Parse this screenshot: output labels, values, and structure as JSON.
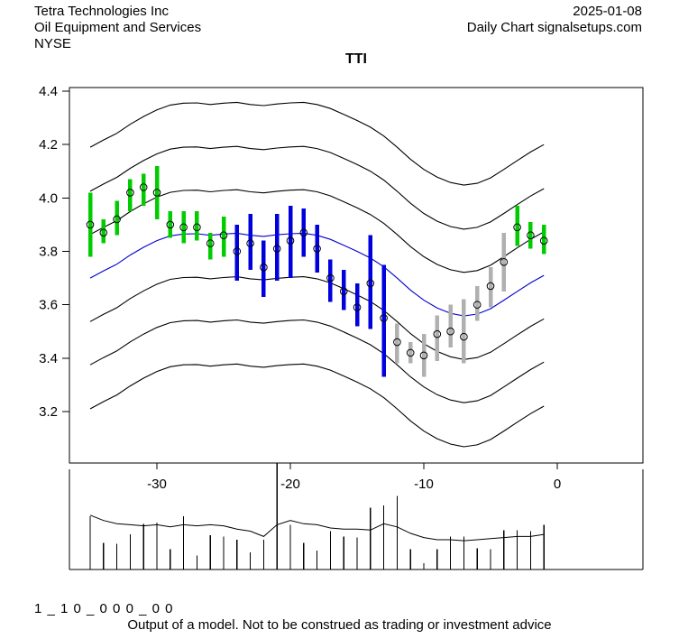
{
  "header": {
    "company": "Tetra Technologies Inc",
    "industry": "Oil Equipment and Services",
    "exchange": "NYSE",
    "date": "2025-01-08",
    "chart_type": "Daily Chart signalsetups.com"
  },
  "title": "TTI",
  "footer": {
    "model_code": "1 _ 1 0 _ 0 0 0 _ 0 0",
    "disclaimer": "Output of a model. Not to be construed as trading or investment advice"
  },
  "chart_data": {
    "type": "line",
    "subtype": "daily-price-bars-with-envelope-and-volume",
    "title": "TTI",
    "xlabel": "",
    "ylabel": "",
    "x_axis": {
      "range": [
        -36.6,
        6.4
      ],
      "ticks": [
        -30,
        -20,
        -10,
        0
      ],
      "tick_labels": [
        "-30",
        "-20",
        "-10",
        "0"
      ]
    },
    "y_axis": {
      "range": [
        3.01,
        4.41
      ],
      "ticks": [
        4.4,
        4.2,
        4.0,
        3.8,
        3.6,
        3.4,
        3.2
      ],
      "tick_labels": [
        "4.4",
        "4.2",
        "4.0",
        "3.8",
        "3.6",
        "3.4",
        "3.2"
      ]
    },
    "grid": false,
    "legend": "none",
    "colors": {
      "green": "#00cc00",
      "blue": "#0000dd",
      "gray": "#b0b0b0",
      "center_line": "#0000cc",
      "envelope": "#000000",
      "volume": "#000000"
    },
    "price_bars": [
      {
        "d": -35,
        "color": "green",
        "high": 4.02,
        "low": 3.78,
        "close": 3.9
      },
      {
        "d": -34,
        "color": "green",
        "high": 3.92,
        "low": 3.83,
        "close": 3.87
      },
      {
        "d": -33,
        "color": "green",
        "high": 3.99,
        "low": 3.86,
        "close": 3.92
      },
      {
        "d": -32,
        "color": "green",
        "high": 4.07,
        "low": 3.95,
        "close": 4.02
      },
      {
        "d": -31,
        "color": "green",
        "high": 4.09,
        "low": 3.97,
        "close": 4.04
      },
      {
        "d": -30,
        "color": "green",
        "high": 4.12,
        "low": 3.92,
        "close": 4.02
      },
      {
        "d": -29,
        "color": "green",
        "high": 3.95,
        "low": 3.85,
        "close": 3.9
      },
      {
        "d": -28,
        "color": "green",
        "high": 3.95,
        "low": 3.83,
        "close": 3.89
      },
      {
        "d": -27,
        "color": "green",
        "high": 3.95,
        "low": 3.84,
        "close": 3.89
      },
      {
        "d": -26,
        "color": "green",
        "high": 3.87,
        "low": 3.77,
        "close": 3.83
      },
      {
        "d": -25,
        "color": "green",
        "high": 3.93,
        "low": 3.78,
        "close": 3.86
      },
      {
        "d": -24,
        "color": "blue",
        "high": 3.9,
        "low": 3.69,
        "close": 3.8
      },
      {
        "d": -23,
        "color": "blue",
        "high": 3.94,
        "low": 3.73,
        "close": 3.83
      },
      {
        "d": -22,
        "color": "blue",
        "high": 3.84,
        "low": 3.63,
        "close": 3.74
      },
      {
        "d": -21,
        "color": "blue",
        "high": 3.94,
        "low": 3.69,
        "close": 3.81
      },
      {
        "d": -20,
        "color": "blue",
        "high": 3.97,
        "low": 3.7,
        "close": 3.84
      },
      {
        "d": -19,
        "color": "blue",
        "high": 3.96,
        "low": 3.78,
        "close": 3.87
      },
      {
        "d": -18,
        "color": "blue",
        "high": 3.9,
        "low": 3.72,
        "close": 3.81
      },
      {
        "d": -17,
        "color": "blue",
        "high": 3.77,
        "low": 3.61,
        "close": 3.7
      },
      {
        "d": -16,
        "color": "blue",
        "high": 3.73,
        "low": 3.58,
        "close": 3.65
      },
      {
        "d": -15,
        "color": "blue",
        "high": 3.68,
        "low": 3.52,
        "close": 3.59
      },
      {
        "d": -14,
        "color": "blue",
        "high": 3.86,
        "low": 3.51,
        "close": 3.68
      },
      {
        "d": -13,
        "color": "blue",
        "high": 3.75,
        "low": 3.33,
        "close": 3.55
      },
      {
        "d": -12,
        "color": "gray",
        "high": 3.53,
        "low": 3.38,
        "close": 3.46
      },
      {
        "d": -11,
        "color": "gray",
        "high": 3.46,
        "low": 3.38,
        "close": 3.42
      },
      {
        "d": -10,
        "color": "gray",
        "high": 3.49,
        "low": 3.33,
        "close": 3.41
      },
      {
        "d": -9,
        "color": "gray",
        "high": 3.56,
        "low": 3.39,
        "close": 3.49
      },
      {
        "d": -8,
        "color": "gray",
        "high": 3.6,
        "low": 3.44,
        "close": 3.5
      },
      {
        "d": -7,
        "color": "gray",
        "high": 3.62,
        "low": 3.38,
        "close": 3.48
      },
      {
        "d": -6,
        "color": "gray",
        "high": 3.67,
        "low": 3.54,
        "close": 3.6
      },
      {
        "d": -5,
        "color": "gray",
        "high": 3.74,
        "low": 3.59,
        "close": 3.67
      },
      {
        "d": -4,
        "color": "gray",
        "high": 3.87,
        "low": 3.65,
        "close": 3.76
      },
      {
        "d": -3,
        "color": "green",
        "high": 3.97,
        "low": 3.82,
        "close": 3.89
      },
      {
        "d": -2,
        "color": "green",
        "high": 3.91,
        "low": 3.81,
        "close": 3.86
      },
      {
        "d": -1,
        "color": "green",
        "high": 3.9,
        "low": 3.79,
        "close": 3.84
      }
    ],
    "envelope": {
      "offsets": [
        0.49,
        0.325,
        0.163,
        0,
        -0.163,
        -0.325,
        -0.49
      ],
      "center_is_blue_index": 3,
      "center": [
        [
          -35,
          3.7
        ],
        [
          -34,
          3.727
        ],
        [
          -33,
          3.752
        ],
        [
          -32,
          3.786
        ],
        [
          -31,
          3.815
        ],
        [
          -30,
          3.84
        ],
        [
          -29,
          3.858
        ],
        [
          -28,
          3.865
        ],
        [
          -27,
          3.866
        ],
        [
          -26,
          3.86
        ],
        [
          -25,
          3.865
        ],
        [
          -24,
          3.868
        ],
        [
          -23,
          3.86
        ],
        [
          -22,
          3.856
        ],
        [
          -21,
          3.862
        ],
        [
          -20,
          3.866
        ],
        [
          -19,
          3.868
        ],
        [
          -18,
          3.86
        ],
        [
          -17,
          3.845
        ],
        [
          -16,
          3.823
        ],
        [
          -15,
          3.8
        ],
        [
          -14,
          3.775
        ],
        [
          -13,
          3.742
        ],
        [
          -12,
          3.7
        ],
        [
          -11,
          3.655
        ],
        [
          -10,
          3.617
        ],
        [
          -9,
          3.588
        ],
        [
          -8,
          3.568
        ],
        [
          -7,
          3.558
        ],
        [
          -6,
          3.565
        ],
        [
          -5,
          3.585
        ],
        [
          -4,
          3.617
        ],
        [
          -3,
          3.65
        ],
        [
          -2,
          3.682
        ],
        [
          -1,
          3.71
        ]
      ]
    },
    "volume": {
      "range": [
        0,
        100
      ],
      "bars": [
        {
          "d": -35,
          "v": 50
        },
        {
          "d": -34,
          "v": 25
        },
        {
          "d": -33,
          "v": 24
        },
        {
          "d": -32,
          "v": 33
        },
        {
          "d": -31,
          "v": 43
        },
        {
          "d": -30,
          "v": 44
        },
        {
          "d": -29,
          "v": 19
        },
        {
          "d": -28,
          "v": 50
        },
        {
          "d": -27,
          "v": 13
        },
        {
          "d": -26,
          "v": 32
        },
        {
          "d": -25,
          "v": 31
        },
        {
          "d": -24,
          "v": 28
        },
        {
          "d": -23,
          "v": 16
        },
        {
          "d": -22,
          "v": 28
        },
        {
          "d": -21,
          "v": 100
        },
        {
          "d": -20,
          "v": 42
        },
        {
          "d": -19,
          "v": 25
        },
        {
          "d": -18,
          "v": 18
        },
        {
          "d": -17,
          "v": 36
        },
        {
          "d": -16,
          "v": 31
        },
        {
          "d": -15,
          "v": 30
        },
        {
          "d": -14,
          "v": 58
        },
        {
          "d": -13,
          "v": 60
        },
        {
          "d": -12,
          "v": 69
        },
        {
          "d": -11,
          "v": 19
        },
        {
          "d": -10,
          "v": 6
        },
        {
          "d": -9,
          "v": 19
        },
        {
          "d": -8,
          "v": 31
        },
        {
          "d": -7,
          "v": 31
        },
        {
          "d": -6,
          "v": 20
        },
        {
          "d": -5,
          "v": 19
        },
        {
          "d": -4,
          "v": 37
        },
        {
          "d": -3,
          "v": 37
        },
        {
          "d": -2,
          "v": 36
        },
        {
          "d": -1,
          "v": 42
        }
      ],
      "ma_line": [
        {
          "d": -35,
          "v": 51
        },
        {
          "d": -34,
          "v": 46
        },
        {
          "d": -33,
          "v": 43
        },
        {
          "d": -32,
          "v": 42
        },
        {
          "d": -31,
          "v": 41
        },
        {
          "d": -30,
          "v": 42
        },
        {
          "d": -29,
          "v": 40
        },
        {
          "d": -28,
          "v": 42
        },
        {
          "d": -27,
          "v": 41
        },
        {
          "d": -26,
          "v": 42
        },
        {
          "d": -25,
          "v": 41
        },
        {
          "d": -24,
          "v": 38
        },
        {
          "d": -23,
          "v": 36
        },
        {
          "d": -22,
          "v": 31
        },
        {
          "d": -21,
          "v": 42
        },
        {
          "d": -20,
          "v": 46
        },
        {
          "d": -19,
          "v": 43
        },
        {
          "d": -18,
          "v": 42
        },
        {
          "d": -17,
          "v": 39
        },
        {
          "d": -16,
          "v": 38
        },
        {
          "d": -15,
          "v": 38
        },
        {
          "d": -14,
          "v": 37
        },
        {
          "d": -13,
          "v": 43
        },
        {
          "d": -12,
          "v": 40
        },
        {
          "d": -11,
          "v": 34
        },
        {
          "d": -10,
          "v": 30
        },
        {
          "d": -9,
          "v": 28
        },
        {
          "d": -8,
          "v": 28
        },
        {
          "d": -7,
          "v": 27
        },
        {
          "d": -6,
          "v": 28
        },
        {
          "d": -5,
          "v": 29
        },
        {
          "d": -4,
          "v": 30
        },
        {
          "d": -3,
          "v": 31
        },
        {
          "d": -2,
          "v": 31
        },
        {
          "d": -1,
          "v": 33
        }
      ]
    }
  }
}
